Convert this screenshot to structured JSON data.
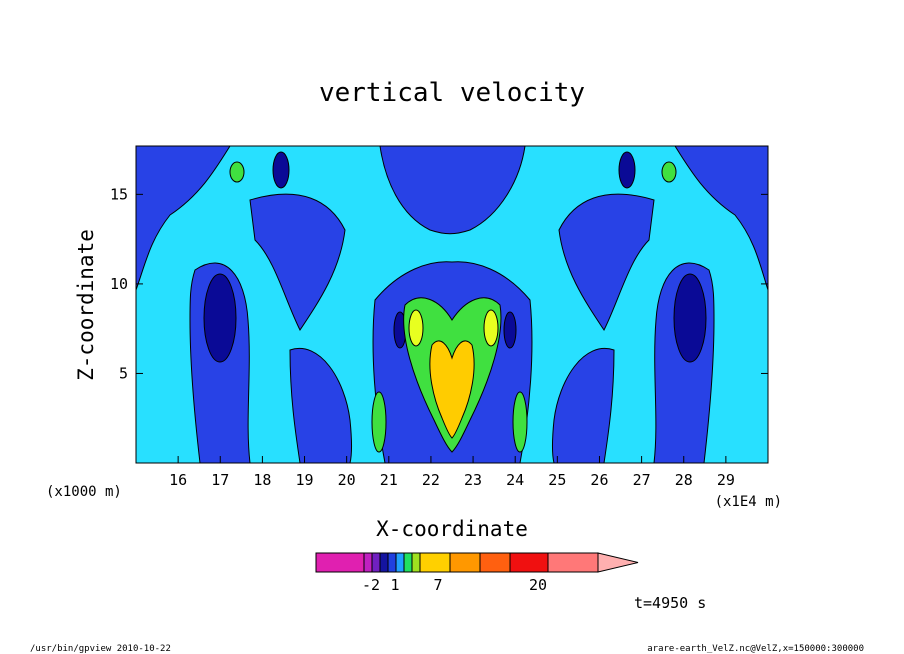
{
  "chart_data": {
    "type": "heatmap",
    "title": "vertical velocity",
    "xlabel": "X-coordinate",
    "ylabel": "Z-coordinate",
    "x_unit_label": "(x1E4 m)",
    "y_unit_label": "(x1000 m)",
    "xlim": [
      15.0,
      30.0
    ],
    "ylim": [
      0.0,
      17.7
    ],
    "x_ticks": [
      "16",
      "17",
      "18",
      "19",
      "20",
      "21",
      "22",
      "23",
      "24",
      "25",
      "26",
      "27",
      "28",
      "29"
    ],
    "y_ticks": [
      "5",
      "10",
      "15"
    ],
    "x_tick_values": [
      16,
      17,
      18,
      19,
      20,
      21,
      22,
      23,
      24,
      25,
      26,
      27,
      28,
      29
    ],
    "y_tick_values": [
      5,
      10,
      15
    ],
    "colorbar": {
      "labels": [
        "-2",
        "1",
        "7",
        "20"
      ],
      "label_values": [
        -2,
        1,
        7,
        20
      ],
      "colors": [
        "#e020b0",
        "#c020c0",
        "#7020c0",
        "#1414a0",
        "#2040e0",
        "#20a0ff",
        "#20e060",
        "#a0e020",
        "#ffd000",
        "#ff9800",
        "#ff6010",
        "#f01010",
        "#ff7878",
        "#ffb0b0"
      ]
    },
    "level_colors": {
      "strong_down": "#0a0a96",
      "down": "#2842e6",
      "near_zero": "#28e0ff",
      "weak_up": "#40e040",
      "moderate_up": "#e8ff20",
      "strong_up": "#ffcc00"
    },
    "features": [
      {
        "name": "strong updraft core",
        "x": 22.6,
        "z": 4.0,
        "level": "strong_up"
      },
      {
        "name": "updraft lobe",
        "x": 21.8,
        "z": 7.5,
        "level": "moderate_up"
      },
      {
        "name": "updraft lobe",
        "x": 23.5,
        "z": 7.5,
        "level": "moderate_up"
      },
      {
        "name": "downdraft column",
        "x": 17.1,
        "z": 8.0,
        "level": "strong_down"
      },
      {
        "name": "downdraft column",
        "x": 28.1,
        "z": 8.0,
        "level": "strong_down"
      }
    ],
    "time_label": "t=4950 s"
  },
  "footer": {
    "left": "/usr/bin/gpview  2010-10-22",
    "right": "arare-earth_VelZ.nc@VelZ,x=150000:300000"
  }
}
